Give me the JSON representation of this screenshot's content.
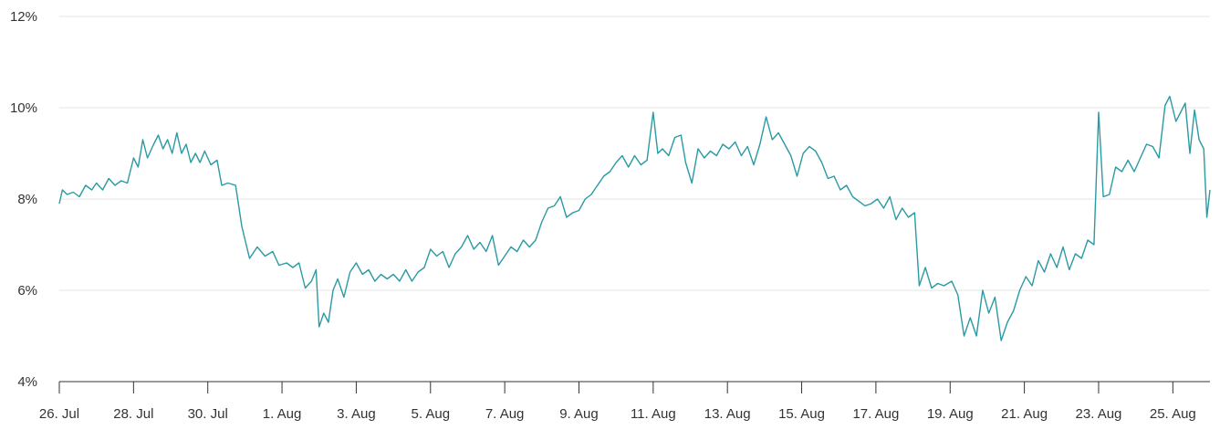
{
  "chart_data": {
    "type": "line",
    "title": "",
    "xlabel": "",
    "ylabel": "",
    "y_unit": "%",
    "ylim": [
      4,
      12
    ],
    "y_ticks": [
      4,
      6,
      8,
      10,
      12
    ],
    "y_tick_labels": [
      "4%",
      "6%",
      "8%",
      "10%",
      "12%"
    ],
    "xlim": [
      "2023-07-26",
      "2023-08-26"
    ],
    "x_ticks": [
      "2023-07-26",
      "2023-07-28",
      "2023-07-30",
      "2023-08-01",
      "2023-08-03",
      "2023-08-05",
      "2023-08-07",
      "2023-08-09",
      "2023-08-11",
      "2023-08-13",
      "2023-08-15",
      "2023-08-17",
      "2023-08-19",
      "2023-08-21",
      "2023-08-23",
      "2023-08-25"
    ],
    "x_tick_labels": [
      "26. Jul",
      "28. Jul",
      "30. Jul",
      "1. Aug",
      "3. Aug",
      "5. Aug",
      "7. Aug",
      "9. Aug",
      "11. Aug",
      "13. Aug",
      "15. Aug",
      "17. Aug",
      "19. Aug",
      "21. Aug",
      "23. Aug",
      "25. Aug"
    ],
    "grid": true,
    "legend": "none",
    "colors": {
      "series": "#2a9aa3",
      "grid": "#e6e6e6",
      "axis": "#333333",
      "text": "#333333"
    },
    "series": [
      {
        "values": [
          {
            "x": "2023-07-26T00:00",
            "y": 7.9
          },
          {
            "x": "2023-07-26T02:00",
            "y": 8.2
          },
          {
            "x": "2023-07-26T05:00",
            "y": 8.1
          },
          {
            "x": "2023-07-26T09:00",
            "y": 8.15
          },
          {
            "x": "2023-07-26T13:00",
            "y": 8.05
          },
          {
            "x": "2023-07-26T17:00",
            "y": 8.3
          },
          {
            "x": "2023-07-26T21:00",
            "y": 8.2
          },
          {
            "x": "2023-07-27T00:00",
            "y": 8.35
          },
          {
            "x": "2023-07-27T04:00",
            "y": 8.2
          },
          {
            "x": "2023-07-27T08:00",
            "y": 8.45
          },
          {
            "x": "2023-07-27T12:00",
            "y": 8.3
          },
          {
            "x": "2023-07-27T16:00",
            "y": 8.4
          },
          {
            "x": "2023-07-27T20:00",
            "y": 8.35
          },
          {
            "x": "2023-07-28T00:00",
            "y": 8.9
          },
          {
            "x": "2023-07-28T03:00",
            "y": 8.7
          },
          {
            "x": "2023-07-28T06:00",
            "y": 9.3
          },
          {
            "x": "2023-07-28T09:00",
            "y": 8.9
          },
          {
            "x": "2023-07-28T13:00",
            "y": 9.2
          },
          {
            "x": "2023-07-28T16:00",
            "y": 9.4
          },
          {
            "x": "2023-07-28T19:00",
            "y": 9.1
          },
          {
            "x": "2023-07-28T22:00",
            "y": 9.3
          },
          {
            "x": "2023-07-29T01:00",
            "y": 9.0
          },
          {
            "x": "2023-07-29T04:00",
            "y": 9.45
          },
          {
            "x": "2023-07-29T07:00",
            "y": 9.0
          },
          {
            "x": "2023-07-29T10:00",
            "y": 9.2
          },
          {
            "x": "2023-07-29T13:00",
            "y": 8.8
          },
          {
            "x": "2023-07-29T16:00",
            "y": 9.0
          },
          {
            "x": "2023-07-29T19:00",
            "y": 8.8
          },
          {
            "x": "2023-07-29T22:00",
            "y": 9.05
          },
          {
            "x": "2023-07-30T02:00",
            "y": 8.75
          },
          {
            "x": "2023-07-30T06:00",
            "y": 8.85
          },
          {
            "x": "2023-07-30T09:00",
            "y": 8.3
          },
          {
            "x": "2023-07-30T13:00",
            "y": 8.35
          },
          {
            "x": "2023-07-30T18:00",
            "y": 8.3
          },
          {
            "x": "2023-07-30T22:00",
            "y": 7.4
          },
          {
            "x": "2023-07-31T03:00",
            "y": 6.7
          },
          {
            "x": "2023-07-31T08:00",
            "y": 6.95
          },
          {
            "x": "2023-07-31T13:00",
            "y": 6.75
          },
          {
            "x": "2023-07-31T18:00",
            "y": 6.85
          },
          {
            "x": "2023-07-31T22:00",
            "y": 6.55
          },
          {
            "x": "2023-08-01T03:00",
            "y": 6.6
          },
          {
            "x": "2023-08-01T07:00",
            "y": 6.5
          },
          {
            "x": "2023-08-01T11:00",
            "y": 6.6
          },
          {
            "x": "2023-08-01T15:00",
            "y": 6.05
          },
          {
            "x": "2023-08-01T19:00",
            "y": 6.2
          },
          {
            "x": "2023-08-01T22:00",
            "y": 6.45
          },
          {
            "x": "2023-08-02T00:00",
            "y": 5.2
          },
          {
            "x": "2023-08-02T03:00",
            "y": 5.5
          },
          {
            "x": "2023-08-02T06:00",
            "y": 5.3
          },
          {
            "x": "2023-08-02T09:00",
            "y": 6.0
          },
          {
            "x": "2023-08-02T12:00",
            "y": 6.25
          },
          {
            "x": "2023-08-02T16:00",
            "y": 5.85
          },
          {
            "x": "2023-08-02T20:00",
            "y": 6.4
          },
          {
            "x": "2023-08-03T00:00",
            "y": 6.6
          },
          {
            "x": "2023-08-03T04:00",
            "y": 6.35
          },
          {
            "x": "2023-08-03T08:00",
            "y": 6.45
          },
          {
            "x": "2023-08-03T12:00",
            "y": 6.2
          },
          {
            "x": "2023-08-03T16:00",
            "y": 6.35
          },
          {
            "x": "2023-08-03T20:00",
            "y": 6.25
          },
          {
            "x": "2023-08-04T00:00",
            "y": 6.35
          },
          {
            "x": "2023-08-04T04:00",
            "y": 6.2
          },
          {
            "x": "2023-08-04T08:00",
            "y": 6.45
          },
          {
            "x": "2023-08-04T12:00",
            "y": 6.2
          },
          {
            "x": "2023-08-04T16:00",
            "y": 6.4
          },
          {
            "x": "2023-08-04T20:00",
            "y": 6.5
          },
          {
            "x": "2023-08-05T00:00",
            "y": 6.9
          },
          {
            "x": "2023-08-05T04:00",
            "y": 6.75
          },
          {
            "x": "2023-08-05T08:00",
            "y": 6.85
          },
          {
            "x": "2023-08-05T12:00",
            "y": 6.5
          },
          {
            "x": "2023-08-05T16:00",
            "y": 6.8
          },
          {
            "x": "2023-08-05T20:00",
            "y": 6.95
          },
          {
            "x": "2023-08-06T00:00",
            "y": 7.2
          },
          {
            "x": "2023-08-06T04:00",
            "y": 6.9
          },
          {
            "x": "2023-08-06T08:00",
            "y": 7.05
          },
          {
            "x": "2023-08-06T12:00",
            "y": 6.85
          },
          {
            "x": "2023-08-06T16:00",
            "y": 7.2
          },
          {
            "x": "2023-08-06T20:00",
            "y": 6.55
          },
          {
            "x": "2023-08-07T00:00",
            "y": 6.75
          },
          {
            "x": "2023-08-07T04:00",
            "y": 6.95
          },
          {
            "x": "2023-08-07T08:00",
            "y": 6.85
          },
          {
            "x": "2023-08-07T12:00",
            "y": 7.1
          },
          {
            "x": "2023-08-07T16:00",
            "y": 6.95
          },
          {
            "x": "2023-08-07T20:00",
            "y": 7.1
          },
          {
            "x": "2023-08-08T00:00",
            "y": 7.5
          },
          {
            "x": "2023-08-08T04:00",
            "y": 7.8
          },
          {
            "x": "2023-08-08T08:00",
            "y": 7.85
          },
          {
            "x": "2023-08-08T12:00",
            "y": 8.05
          },
          {
            "x": "2023-08-08T16:00",
            "y": 7.6
          },
          {
            "x": "2023-08-08T20:00",
            "y": 7.7
          },
          {
            "x": "2023-08-09T00:00",
            "y": 7.75
          },
          {
            "x": "2023-08-09T04:00",
            "y": 8.0
          },
          {
            "x": "2023-08-09T08:00",
            "y": 8.1
          },
          {
            "x": "2023-08-09T12:00",
            "y": 8.3
          },
          {
            "x": "2023-08-09T16:00",
            "y": 8.5
          },
          {
            "x": "2023-08-09T20:00",
            "y": 8.6
          },
          {
            "x": "2023-08-10T00:00",
            "y": 8.8
          },
          {
            "x": "2023-08-10T04:00",
            "y": 8.95
          },
          {
            "x": "2023-08-10T08:00",
            "y": 8.7
          },
          {
            "x": "2023-08-10T12:00",
            "y": 8.95
          },
          {
            "x": "2023-08-10T16:00",
            "y": 8.75
          },
          {
            "x": "2023-08-10T20:00",
            "y": 8.85
          },
          {
            "x": "2023-08-11T00:00",
            "y": 9.9
          },
          {
            "x": "2023-08-11T03:00",
            "y": 9.0
          },
          {
            "x": "2023-08-11T06:00",
            "y": 9.1
          },
          {
            "x": "2023-08-11T10:00",
            "y": 8.95
          },
          {
            "x": "2023-08-11T14:00",
            "y": 9.35
          },
          {
            "x": "2023-08-11T18:00",
            "y": 9.4
          },
          {
            "x": "2023-08-11T21:00",
            "y": 8.8
          },
          {
            "x": "2023-08-12T01:00",
            "y": 8.35
          },
          {
            "x": "2023-08-12T05:00",
            "y": 9.1
          },
          {
            "x": "2023-08-12T09:00",
            "y": 8.9
          },
          {
            "x": "2023-08-12T13:00",
            "y": 9.05
          },
          {
            "x": "2023-08-12T17:00",
            "y": 8.95
          },
          {
            "x": "2023-08-12T21:00",
            "y": 9.2
          },
          {
            "x": "2023-08-13T01:00",
            "y": 9.1
          },
          {
            "x": "2023-08-13T05:00",
            "y": 9.25
          },
          {
            "x": "2023-08-13T09:00",
            "y": 8.95
          },
          {
            "x": "2023-08-13T13:00",
            "y": 9.15
          },
          {
            "x": "2023-08-13T17:00",
            "y": 8.75
          },
          {
            "x": "2023-08-13T21:00",
            "y": 9.2
          },
          {
            "x": "2023-08-14T01:00",
            "y": 9.8
          },
          {
            "x": "2023-08-14T05:00",
            "y": 9.3
          },
          {
            "x": "2023-08-14T09:00",
            "y": 9.45
          },
          {
            "x": "2023-08-14T13:00",
            "y": 9.2
          },
          {
            "x": "2023-08-14T17:00",
            "y": 8.95
          },
          {
            "x": "2023-08-14T21:00",
            "y": 8.5
          },
          {
            "x": "2023-08-15T01:00",
            "y": 9.0
          },
          {
            "x": "2023-08-15T05:00",
            "y": 9.15
          },
          {
            "x": "2023-08-15T09:00",
            "y": 9.05
          },
          {
            "x": "2023-08-15T13:00",
            "y": 8.8
          },
          {
            "x": "2023-08-15T17:00",
            "y": 8.45
          },
          {
            "x": "2023-08-15T21:00",
            "y": 8.5
          },
          {
            "x": "2023-08-16T01:00",
            "y": 8.2
          },
          {
            "x": "2023-08-16T05:00",
            "y": 8.3
          },
          {
            "x": "2023-08-16T09:00",
            "y": 8.05
          },
          {
            "x": "2023-08-16T13:00",
            "y": 7.95
          },
          {
            "x": "2023-08-16T17:00",
            "y": 7.85
          },
          {
            "x": "2023-08-16T21:00",
            "y": 7.9
          },
          {
            "x": "2023-08-17T01:00",
            "y": 8.0
          },
          {
            "x": "2023-08-17T05:00",
            "y": 7.8
          },
          {
            "x": "2023-08-17T09:00",
            "y": 8.05
          },
          {
            "x": "2023-08-17T13:00",
            "y": 7.55
          },
          {
            "x": "2023-08-17T17:00",
            "y": 7.8
          },
          {
            "x": "2023-08-17T21:00",
            "y": 7.6
          },
          {
            "x": "2023-08-18T01:00",
            "y": 7.7
          },
          {
            "x": "2023-08-18T04:00",
            "y": 6.1
          },
          {
            "x": "2023-08-18T08:00",
            "y": 6.5
          },
          {
            "x": "2023-08-18T12:00",
            "y": 6.05
          },
          {
            "x": "2023-08-18T16:00",
            "y": 6.15
          },
          {
            "x": "2023-08-18T20:00",
            "y": 6.1
          },
          {
            "x": "2023-08-19T01:00",
            "y": 6.2
          },
          {
            "x": "2023-08-19T05:00",
            "y": 5.9
          },
          {
            "x": "2023-08-19T09:00",
            "y": 5.0
          },
          {
            "x": "2023-08-19T13:00",
            "y": 5.4
          },
          {
            "x": "2023-08-19T17:00",
            "y": 5.0
          },
          {
            "x": "2023-08-19T21:00",
            "y": 6.0
          },
          {
            "x": "2023-08-20T01:00",
            "y": 5.5
          },
          {
            "x": "2023-08-20T05:00",
            "y": 5.85
          },
          {
            "x": "2023-08-20T09:00",
            "y": 4.9
          },
          {
            "x": "2023-08-20T13:00",
            "y": 5.3
          },
          {
            "x": "2023-08-20T17:00",
            "y": 5.55
          },
          {
            "x": "2023-08-20T21:00",
            "y": 6.0
          },
          {
            "x": "2023-08-21T01:00",
            "y": 6.3
          },
          {
            "x": "2023-08-21T05:00",
            "y": 6.1
          },
          {
            "x": "2023-08-21T09:00",
            "y": 6.65
          },
          {
            "x": "2023-08-21T13:00",
            "y": 6.4
          },
          {
            "x": "2023-08-21T17:00",
            "y": 6.8
          },
          {
            "x": "2023-08-21T21:00",
            "y": 6.5
          },
          {
            "x": "2023-08-22T01:00",
            "y": 6.95
          },
          {
            "x": "2023-08-22T05:00",
            "y": 6.45
          },
          {
            "x": "2023-08-22T09:00",
            "y": 6.8
          },
          {
            "x": "2023-08-22T13:00",
            "y": 6.7
          },
          {
            "x": "2023-08-22T17:00",
            "y": 7.1
          },
          {
            "x": "2023-08-22T21:00",
            "y": 7.0
          },
          {
            "x": "2023-08-23T00:00",
            "y": 9.9
          },
          {
            "x": "2023-08-23T03:00",
            "y": 8.05
          },
          {
            "x": "2023-08-23T07:00",
            "y": 8.1
          },
          {
            "x": "2023-08-23T11:00",
            "y": 8.7
          },
          {
            "x": "2023-08-23T15:00",
            "y": 8.6
          },
          {
            "x": "2023-08-23T19:00",
            "y": 8.85
          },
          {
            "x": "2023-08-23T23:00",
            "y": 8.6
          },
          {
            "x": "2023-08-24T03:00",
            "y": 8.9
          },
          {
            "x": "2023-08-24T07:00",
            "y": 9.2
          },
          {
            "x": "2023-08-24T11:00",
            "y": 9.15
          },
          {
            "x": "2023-08-24T15:00",
            "y": 8.9
          },
          {
            "x": "2023-08-24T19:00",
            "y": 10.05
          },
          {
            "x": "2023-08-24T22:00",
            "y": 10.25
          },
          {
            "x": "2023-08-25T02:00",
            "y": 9.7
          },
          {
            "x": "2023-08-25T05:00",
            "y": 9.9
          },
          {
            "x": "2023-08-25T08:00",
            "y": 10.1
          },
          {
            "x": "2023-08-25T11:00",
            "y": 9.0
          },
          {
            "x": "2023-08-25T14:00",
            "y": 9.95
          },
          {
            "x": "2023-08-25T17:00",
            "y": 9.3
          },
          {
            "x": "2023-08-25T20:00",
            "y": 9.1
          },
          {
            "x": "2023-08-25T22:00",
            "y": 7.6
          },
          {
            "x": "2023-08-26T00:00",
            "y": 8.2
          }
        ]
      }
    ]
  }
}
